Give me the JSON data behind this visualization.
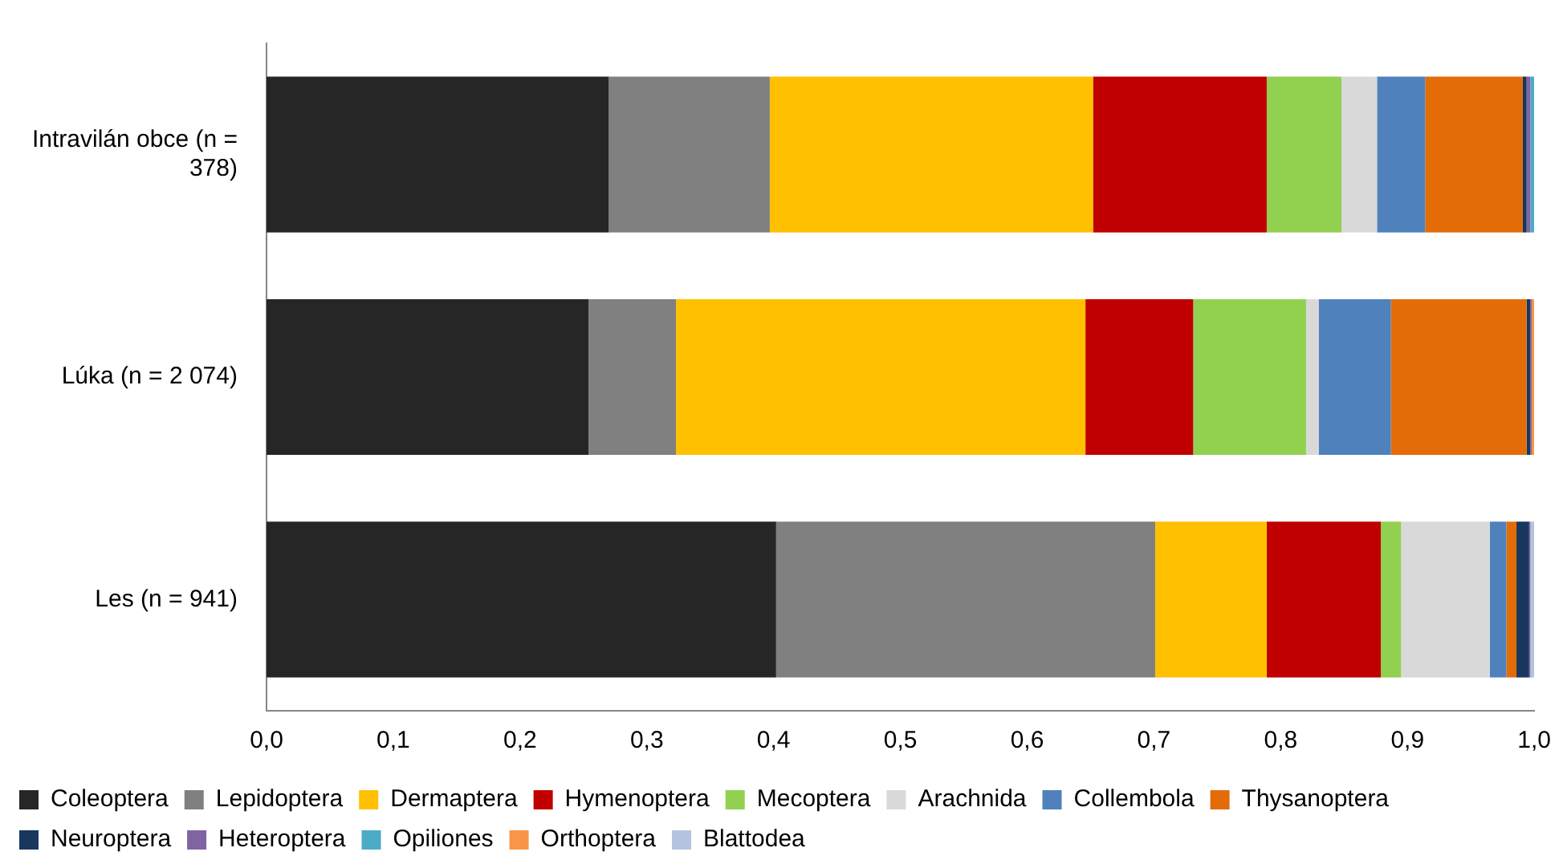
{
  "chart_data": {
    "type": "bar",
    "orientation": "horizontal",
    "stacked": true,
    "categories": [
      "Intravilán obce (n = 378)",
      "Lúka (n = 2 074)",
      "Les (n = 941)"
    ],
    "xlim": [
      0,
      1
    ],
    "xticks": [
      {
        "value": 0,
        "label": "0,0"
      },
      {
        "value": 0.1,
        "label": "0,1"
      },
      {
        "value": 0.2,
        "label": "0,2"
      },
      {
        "value": 0.3,
        "label": "0,3"
      },
      {
        "value": 0.4,
        "label": "0,4"
      },
      {
        "value": 0.5,
        "label": "0,5"
      },
      {
        "value": 0.6,
        "label": "0,6"
      },
      {
        "value": 0.7,
        "label": "0,7"
      },
      {
        "value": 0.8,
        "label": "0,8"
      },
      {
        "value": 0.9,
        "label": "0,9"
      },
      {
        "value": 1,
        "label": "1,0"
      }
    ],
    "grid": false,
    "legend": "bottom",
    "series": [
      {
        "name": "Coleoptera",
        "color": "#262626",
        "values": [
          0.27,
          0.254,
          0.402
        ]
      },
      {
        "name": "Lepidoptera",
        "color": "#808080",
        "values": [
          0.127,
          0.069,
          0.299
        ]
      },
      {
        "name": "Dermaptera",
        "color": "#ffc000",
        "values": [
          0.255,
          0.323,
          0.088
        ]
      },
      {
        "name": "Hymenoptera",
        "color": "#c00000",
        "values": [
          0.137,
          0.085,
          0.09
        ]
      },
      {
        "name": "Mecoptera",
        "color": "#92d050",
        "values": [
          0.059,
          0.089,
          0.016
        ]
      },
      {
        "name": "Arachnida",
        "color": "#d9d9d9",
        "values": [
          0.028,
          0.01,
          0.07
        ]
      },
      {
        "name": "Collembola",
        "color": "#4f81bd",
        "values": [
          0.038,
          0.057,
          0.013
        ]
      },
      {
        "name": "Thysanoptera",
        "color": "#e36c09",
        "values": [
          0.077,
          0.107,
          0.008
        ]
      },
      {
        "name": "Neuroptera",
        "color": "#17375e",
        "values": [
          0.003,
          0.003,
          0.01
        ]
      },
      {
        "name": "Heteroptera",
        "color": "#8064a2",
        "values": [
          0.003,
          0.001,
          0.001
        ]
      },
      {
        "name": "Opiliones",
        "color": "#4bacc6",
        "values": [
          0.003,
          0,
          0
        ]
      },
      {
        "name": "Orthoptera",
        "color": "#f79646",
        "values": [
          0,
          0.002,
          0
        ]
      },
      {
        "name": "Blattodea",
        "color": "#b3c4e0",
        "values": [
          0,
          0,
          0.003
        ]
      }
    ]
  }
}
